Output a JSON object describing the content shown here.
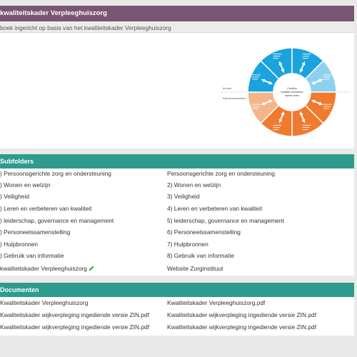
{
  "header": {
    "title": "kwaliteitskader Verpleeghuiszorg"
  },
  "subtitle": "boek ingericht op basis van het kwaliteitskader Verpleeghuiszorg",
  "diagram": {
    "left_label_top": "Inhoud",
    "left_label_bottom": "Randvoorwaarden",
    "center_lines": [
      "Continu",
      "kwaliteit verbeteren",
      "samen leren"
    ],
    "colors": {
      "blue": "#1aa3dd",
      "light_blue": "#8dd1ee",
      "orange": "#f07a2e",
      "light_orange": "#f5b48a"
    }
  },
  "subfolders": {
    "title": "Subfolders",
    "rows": [
      {
        "left": ") Persoonsgerichte zorg en ondersteuning",
        "right": "Persoonsgerichte zorg en ondersteuning"
      },
      {
        "left": ") Wonen en welzijn",
        "right": "2) Wonen en welzijn"
      },
      {
        "left": ") Veiligheid",
        "right": "3) Veiligheid"
      },
      {
        "left": ") Leren en verbeteren van kwaliteit",
        "right": "4) Leren en verbeteren van kwaliteit"
      },
      {
        "left": ") leiderschap, governance en management",
        "right": "5) leiderschap, governance en management"
      },
      {
        "left": ") Personeelssamenstelling",
        "right": "6) Personeelssamenstelling"
      },
      {
        "left": ") Hulpbronnen",
        "right": "7) Hulpbronnen"
      },
      {
        "left": ") Gebruik van informatie",
        "right": "8) Gebruik van informatie"
      },
      {
        "left": "kwaliteitskader Verpleeghuiszorg",
        "right": "Website Zorginstituut"
      }
    ]
  },
  "documenten": {
    "title": "Documenten",
    "rows": [
      {
        "left": "Kwaliteitskader Verpleeghuiszorg",
        "right": "Kwaliteitskader Verpleeghuiszorg.pdf"
      },
      {
        "left": "Kwaliteitskader wijkverpleging ingediende versie ZIN.pdf",
        "right": "Kwaliteitskader wijkverpleging ingediende versie ZIN.pdf"
      },
      {
        "left": "Kwaliteitskader wijkverpleging ingediende versie ZIN.pdf",
        "right": "Kwaliteitskader wijkverpleging ingediende versie ZIN.pdf"
      }
    ]
  }
}
